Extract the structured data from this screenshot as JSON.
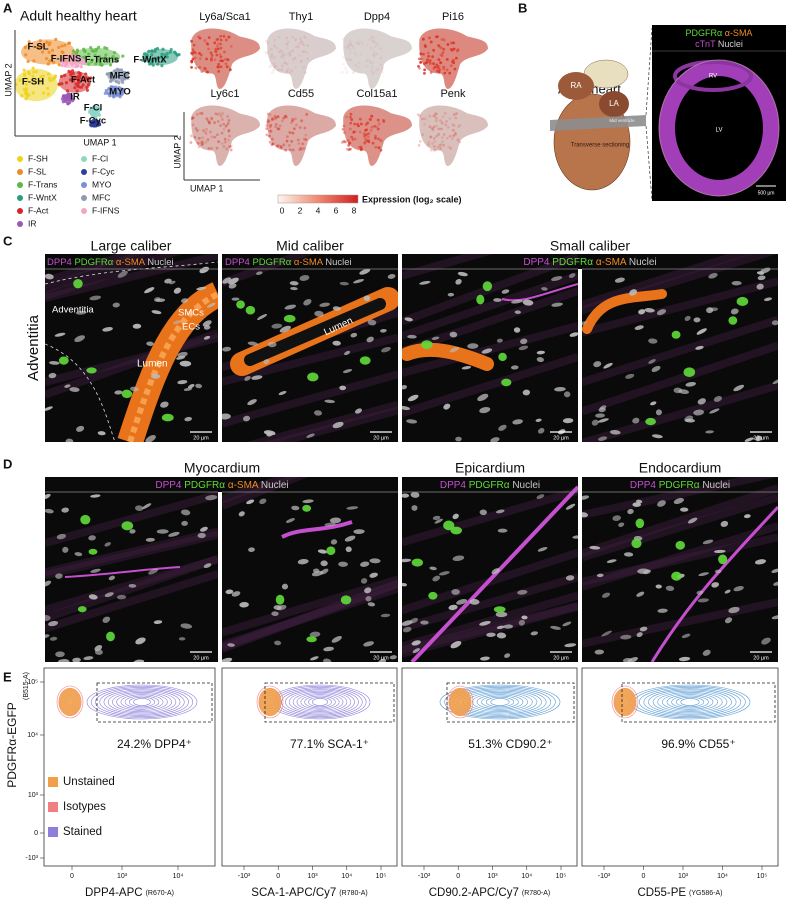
{
  "panel_a": {
    "label": "A",
    "title": "Adult healthy heart",
    "clusters": [
      "F-SL",
      "F-IFNS",
      "F-Trans",
      "F-WntX",
      "F-SH",
      "F-Act",
      "MFC",
      "MYO",
      "IR",
      "F-Cl",
      "F-Cyc"
    ],
    "x_axis": "UMAP 1",
    "y_axis": "UMAP 2",
    "legend": [
      {
        "name": "F-SH",
        "color": "#efd21c"
      },
      {
        "name": "F-SL",
        "color": "#ef8a26"
      },
      {
        "name": "F-Trans",
        "color": "#5cb947"
      },
      {
        "name": "F-WntX",
        "color": "#2a9d7f"
      },
      {
        "name": "F-Act",
        "color": "#d62728"
      },
      {
        "name": "IR",
        "color": "#9b59b6"
      },
      {
        "name": "F-Cl",
        "color": "#8fd6c6"
      },
      {
        "name": "F-Cyc",
        "color": "#2f3f9a"
      },
      {
        "name": "MYO",
        "color": "#7a8fd6"
      },
      {
        "name": "MFC",
        "color": "#8f9bb3"
      },
      {
        "name": "F-IFNS",
        "color": "#f4a6c6"
      }
    ],
    "genes": [
      "Ly6a/Sca1",
      "Thy1",
      "Dpp4",
      "Pi16",
      "Ly6c1",
      "Cd55",
      "Col15a1",
      "Penk"
    ],
    "gene_x_axis": "UMAP 1",
    "gene_y_axis": "UMAP 2",
    "colorbar": {
      "ticks": [
        "0",
        "2",
        "4",
        "6",
        "8"
      ],
      "label": "Expression (log₂ scale)"
    }
  },
  "panel_b": {
    "label": "B",
    "title": "Adult heart",
    "heart_labels": [
      "RA",
      "LA",
      "Mid ventricle",
      "Transverse sectioning"
    ],
    "stains_line1": [
      {
        "text": "PDGFRα",
        "color": "#5fdc3a"
      },
      {
        "text": " α-SMA",
        "color": "#f08a24"
      }
    ],
    "stains_line2": [
      {
        "text": "cTnT",
        "color": "#c64fd0"
      },
      {
        "text": " Nuclei",
        "color": "#d0d0d0"
      }
    ],
    "regions": [
      "RV",
      "LV"
    ],
    "scale": "500 µm"
  },
  "panel_c": {
    "label": "C",
    "side_label": "Adventitia",
    "titles": [
      "Large caliber",
      "Mid caliber",
      "Small caliber"
    ],
    "stains": [
      {
        "text": "DPP4",
        "color": "#c64fd0"
      },
      {
        "text": " PDGFRα",
        "color": "#5fdc3a"
      },
      {
        "text": " α-SMA",
        "color": "#f08a24"
      },
      {
        "text": " Nuclei",
        "color": "#c8c8c8"
      }
    ],
    "annotations": [
      "Adventitia",
      "SMCs",
      "ECs",
      "Lumen",
      "Lumen"
    ],
    "scale": "20 µm"
  },
  "panel_d": {
    "label": "D",
    "titles": [
      "Myocardium",
      "Epicardium",
      "Endocardium"
    ],
    "stains_myocardium": [
      {
        "text": "DPP4",
        "color": "#c64fd0"
      },
      {
        "text": " PDGFRα",
        "color": "#5fdc3a"
      },
      {
        "text": " α-SMA",
        "color": "#f08a24"
      },
      {
        "text": " Nuclei",
        "color": "#c8c8c8"
      }
    ],
    "stains_other": [
      {
        "text": "DPP4",
        "color": "#c64fd0"
      },
      {
        "text": " PDGFRα",
        "color": "#5fdc3a"
      },
      {
        "text": " Nuclei",
        "color": "#c8c8c8"
      }
    ],
    "scale": "20 µm"
  },
  "panel_e": {
    "label": "E",
    "y_axis": "PDGFRα-EGFP",
    "y_axis_channel": "(B515-A)",
    "yticks": [
      "10⁵",
      "10⁴",
      "10³",
      "0",
      "-10³"
    ],
    "legend": [
      {
        "name": "Unstained",
        "color": "#f0a04b"
      },
      {
        "name": "Isotypes",
        "color": "#f08080"
      },
      {
        "name": "Stained",
        "color": "#8b7fd9"
      }
    ],
    "plots": [
      {
        "gate": "24.2% DPP4⁺",
        "x_axis": "DPP4-APC",
        "channel": "(R670-A)",
        "xticks": [
          "0",
          "10³",
          "10⁴"
        ],
        "color": "#8b7fd9"
      },
      {
        "gate": "77.1% SCA-1⁺",
        "x_axis": "SCA-1-APC/Cy7",
        "channel": "(R780-A)",
        "xticks": [
          "-10³",
          "0",
          "10³",
          "10⁴",
          "10⁵"
        ],
        "color": "#8b7fd9"
      },
      {
        "gate": "51.3% CD90.2⁺",
        "x_axis": "CD90.2-APC/Cy7",
        "channel": "(R780-A)",
        "xticks": [
          "-10³",
          "0",
          "10³",
          "10⁴",
          "10⁵"
        ],
        "color": "#5b9bd5"
      },
      {
        "gate": "96.9% CD55⁺",
        "x_axis": "CD55-PE",
        "channel": "(YG586-A)",
        "xticks": [
          "-10³",
          "0",
          "10³",
          "10⁴",
          "10⁵"
        ],
        "color": "#5b9bd5"
      }
    ]
  }
}
